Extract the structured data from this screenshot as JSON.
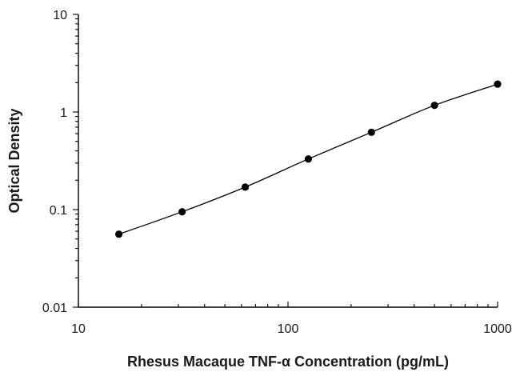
{
  "chart_data": {
    "type": "scatter",
    "title": "",
    "xlabel": "Rhesus Macaque TNF-α Concentration (pg/mL)",
    "ylabel": "Optical Density",
    "xscale": "log",
    "yscale": "log",
    "xlim": [
      10,
      1000
    ],
    "ylim": [
      0.01,
      10
    ],
    "x_ticks": [
      10,
      100,
      1000
    ],
    "x_tick_labels": [
      "10",
      "100",
      "1000"
    ],
    "y_ticks": [
      0.01,
      0.1,
      1,
      10
    ],
    "y_tick_labels": [
      "0.01",
      "0.1",
      "1",
      "10"
    ],
    "grid": false,
    "legend": "none",
    "fit_line": true,
    "point_color": "#000000",
    "line_color": "#000000",
    "series": [
      {
        "x": [
          15.6,
          31.25,
          62.5,
          125,
          250,
          500,
          1000
        ],
        "y": [
          0.056,
          0.095,
          0.17,
          0.33,
          0.62,
          1.17,
          1.93
        ]
      }
    ]
  }
}
